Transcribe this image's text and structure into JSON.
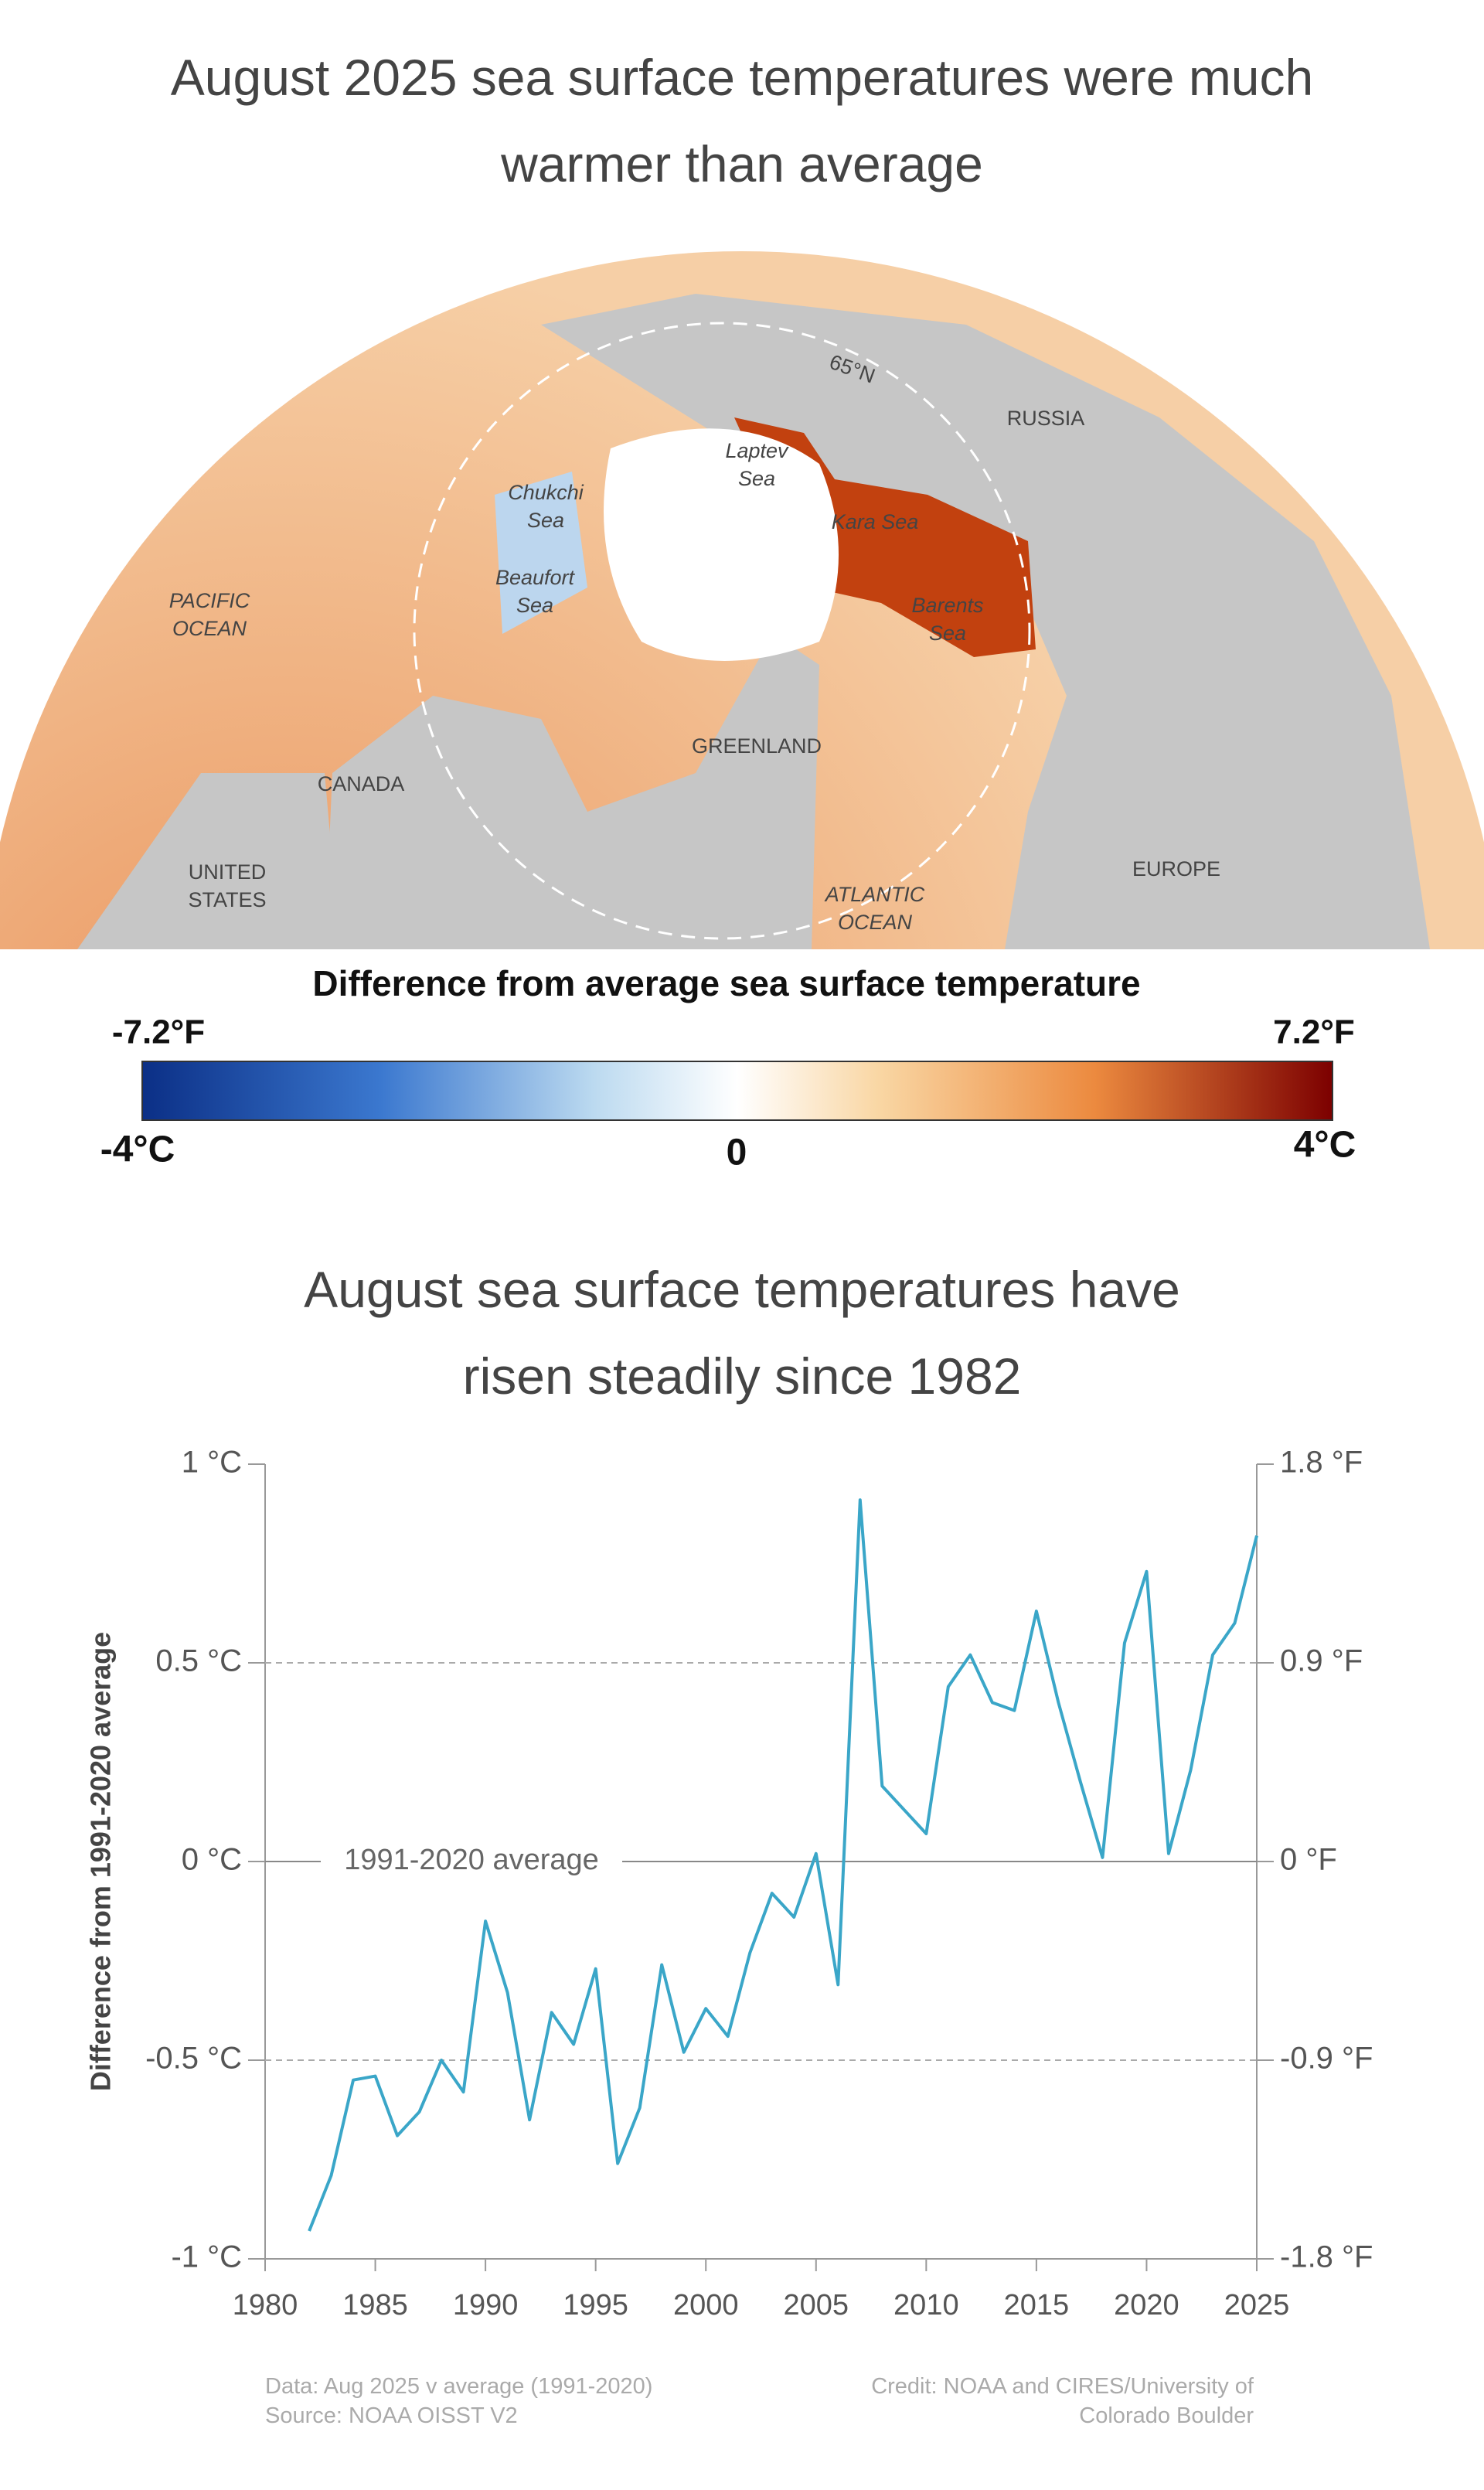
{
  "header": {
    "title": "August 2025 sea surface temperatures were much warmer than average"
  },
  "map": {
    "labels": [
      {
        "lines": [
          "RUSSIA"
        ]
      },
      {
        "lines": [
          "Laptev",
          "Sea"
        ]
      },
      {
        "lines": [
          "Chukchi",
          "Sea"
        ]
      },
      {
        "lines": [
          "Kara Sea"
        ]
      },
      {
        "lines": [
          "Beaufort",
          "Sea"
        ]
      },
      {
        "lines": [
          "PACIFIC",
          "OCEAN"
        ]
      },
      {
        "lines": [
          "Barents",
          "Sea"
        ]
      },
      {
        "lines": [
          "GREENLAND"
        ]
      },
      {
        "lines": [
          "CANADA"
        ]
      },
      {
        "lines": [
          "UNITED",
          "STATES"
        ]
      },
      {
        "lines": [
          "EUROPE"
        ]
      },
      {
        "lines": [
          "ATLANTIC",
          "OCEAN"
        ]
      },
      {
        "lines": [
          "65°N"
        ]
      }
    ]
  },
  "colorbar": {
    "title": "Difference from average sea surface temperature",
    "min_f": "-7.2°F",
    "max_f": "7.2°F",
    "min_c": "-4°C",
    "mid": "0",
    "max_c": "4°C"
  },
  "chart_data": {
    "type": "line",
    "title": "August sea surface temperatures have risen steadily since 1982",
    "y_label": "Difference from 1991-2020 average",
    "annotation": "1991-2020 average",
    "x": [
      1982,
      1983,
      1984,
      1985,
      1986,
      1987,
      1988,
      1989,
      1990,
      1991,
      1992,
      1993,
      1994,
      1995,
      1996,
      1997,
      1998,
      1999,
      2000,
      2001,
      2002,
      2003,
      2004,
      2005,
      2006,
      2007,
      2008,
      2009,
      2010,
      2011,
      2012,
      2013,
      2014,
      2015,
      2016,
      2017,
      2018,
      2019,
      2020,
      2021,
      2022,
      2023,
      2024,
      2025
    ],
    "series": [
      {
        "color": "#3aa6c8",
        "values": [
          -0.93,
          -0.79,
          -0.55,
          -0.54,
          -0.69,
          -0.63,
          -0.5,
          -0.58,
          -0.15,
          -0.33,
          -0.65,
          -0.38,
          -0.46,
          -0.27,
          -0.76,
          -0.62,
          -0.26,
          -0.48,
          -0.37,
          -0.44,
          -0.23,
          -0.08,
          -0.14,
          0.02,
          -0.31,
          0.91,
          0.19,
          0.13,
          0.07,
          0.44,
          0.52,
          0.4,
          0.38,
          0.63,
          0.4,
          0.2,
          0.01,
          0.55,
          0.73,
          0.02,
          0.23,
          0.52,
          0.6,
          0.82
        ]
      }
    ],
    "xlim": [
      1980,
      2025
    ],
    "xticks": [
      1980,
      1985,
      1990,
      1995,
      2000,
      2005,
      2010,
      2015,
      2020,
      2025
    ],
    "ylim": [
      -1,
      1
    ],
    "yticks": [
      {
        "value": 1,
        "label": "1 °C"
      },
      {
        "value": 0.5,
        "label": "0.5 °C"
      },
      {
        "value": 0,
        "label": "0 °C"
      },
      {
        "value": -0.5,
        "label": "-0.5 °C"
      },
      {
        "value": -1,
        "label": "-1 °C"
      }
    ],
    "y2lim": [
      -1.8,
      1.8
    ],
    "y2ticks": [
      {
        "value": 1.8,
        "label": "1.8 °F"
      },
      {
        "value": 0.9,
        "label": "0.9 °F"
      },
      {
        "value": 0,
        "label": "0 °F"
      },
      {
        "value": -0.9,
        "label": "-0.9 °F"
      },
      {
        "value": -1.8,
        "label": "-1.8 °F"
      }
    ],
    "grid": true,
    "footnotes": {
      "data": "Data: Aug 2025 v average (1991-2020)",
      "source": "Source: NOAA OISST V2",
      "credit": "Credit: NOAA and CIRES/University of Colorado Boulder"
    }
  }
}
